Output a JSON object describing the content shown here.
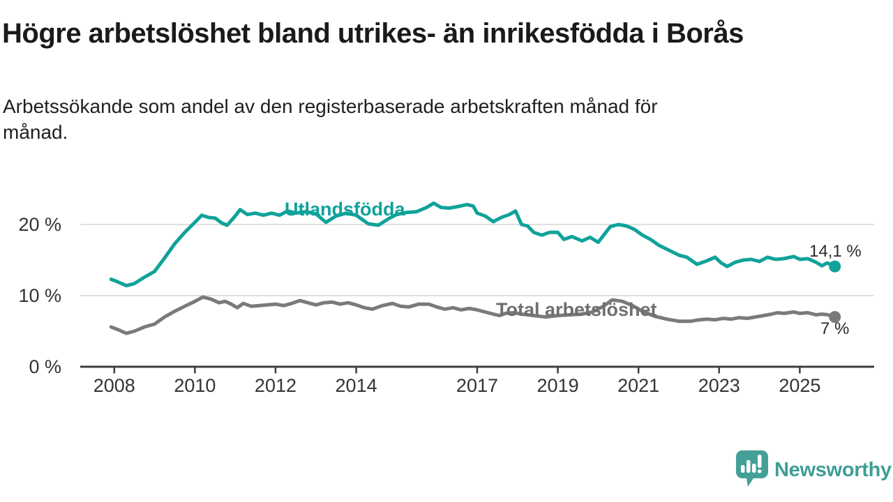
{
  "header": {
    "title": "Högre arbetslöshet bland utrikes- än inrikesfödda i Borås",
    "subtitle_lines": [
      "Arbetssökande som andel av den registerbaserade arbetskraften månad för",
      "månad."
    ]
  },
  "chart_data": {
    "type": "line",
    "title": "Högre arbetslöshet bland utrikes- än inrikesfödda i Borås",
    "subtitle": "Arbetssökande som andel av den registerbaserade arbetskraften månad för månad.",
    "xlabel": "",
    "ylabel": "",
    "ylim": [
      0,
      26
    ],
    "xlim": [
      2007.15,
      2026.85
    ],
    "grid": "horizontal",
    "legend_position": "inline-labels",
    "x_tick_labels": [
      "2008",
      "2010",
      "2012",
      "2014",
      "2017",
      "2019",
      "2021",
      "2023",
      "2025"
    ],
    "y_ticks": [
      {
        "value": 0,
        "label": "0 %"
      },
      {
        "value": 10,
        "label": "10 %"
      },
      {
        "value": 20,
        "label": "20 %"
      }
    ],
    "series": [
      {
        "name": "Utlandsfödda",
        "color": "#0fa29a",
        "end_label": "14,1 %",
        "end_value": 14.1,
        "points": [
          [
            2007.92,
            12.3
          ],
          [
            2008.1,
            11.9
          ],
          [
            2008.3,
            11.4
          ],
          [
            2008.5,
            11.7
          ],
          [
            2008.75,
            12.6
          ],
          [
            2009.0,
            13.4
          ],
          [
            2009.25,
            15.3
          ],
          [
            2009.5,
            17.3
          ],
          [
            2009.75,
            18.9
          ],
          [
            2010.0,
            20.3
          ],
          [
            2010.17,
            21.3
          ],
          [
            2010.33,
            21.0
          ],
          [
            2010.5,
            20.9
          ],
          [
            2010.67,
            20.2
          ],
          [
            2010.8,
            19.9
          ],
          [
            2011.0,
            21.2
          ],
          [
            2011.12,
            22.1
          ],
          [
            2011.3,
            21.4
          ],
          [
            2011.5,
            21.6
          ],
          [
            2011.7,
            21.3
          ],
          [
            2011.9,
            21.6
          ],
          [
            2012.1,
            21.3
          ],
          [
            2012.3,
            21.9
          ],
          [
            2012.5,
            21.6
          ],
          [
            2012.75,
            21.8
          ],
          [
            2013.0,
            21.5
          ],
          [
            2013.25,
            20.3
          ],
          [
            2013.5,
            21.2
          ],
          [
            2013.75,
            21.6
          ],
          [
            2014.0,
            21.3
          ],
          [
            2014.3,
            20.1
          ],
          [
            2014.55,
            19.9
          ],
          [
            2014.8,
            20.8
          ],
          [
            2015.0,
            21.4
          ],
          [
            2015.25,
            21.7
          ],
          [
            2015.5,
            21.8
          ],
          [
            2015.75,
            22.4
          ],
          [
            2015.92,
            23.0
          ],
          [
            2016.1,
            22.4
          ],
          [
            2016.3,
            22.3
          ],
          [
            2016.5,
            22.5
          ],
          [
            2016.75,
            22.8
          ],
          [
            2016.9,
            22.6
          ],
          [
            2017.0,
            21.6
          ],
          [
            2017.2,
            21.2
          ],
          [
            2017.4,
            20.4
          ],
          [
            2017.6,
            21.0
          ],
          [
            2017.8,
            21.4
          ],
          [
            2017.95,
            21.9
          ],
          [
            2018.1,
            20.0
          ],
          [
            2018.25,
            19.8
          ],
          [
            2018.4,
            18.9
          ],
          [
            2018.6,
            18.5
          ],
          [
            2018.8,
            18.9
          ],
          [
            2019.0,
            18.9
          ],
          [
            2019.15,
            17.9
          ],
          [
            2019.35,
            18.3
          ],
          [
            2019.6,
            17.7
          ],
          [
            2019.8,
            18.2
          ],
          [
            2020.0,
            17.5
          ],
          [
            2020.15,
            18.6
          ],
          [
            2020.3,
            19.7
          ],
          [
            2020.5,
            20.0
          ],
          [
            2020.7,
            19.8
          ],
          [
            2020.9,
            19.3
          ],
          [
            2021.1,
            18.5
          ],
          [
            2021.3,
            17.9
          ],
          [
            2021.5,
            17.1
          ],
          [
            2021.75,
            16.4
          ],
          [
            2022.0,
            15.7
          ],
          [
            2022.2,
            15.4
          ],
          [
            2022.45,
            14.4
          ],
          [
            2022.7,
            14.9
          ],
          [
            2022.9,
            15.4
          ],
          [
            2023.05,
            14.6
          ],
          [
            2023.2,
            14.1
          ],
          [
            2023.4,
            14.7
          ],
          [
            2023.6,
            15.0
          ],
          [
            2023.8,
            15.1
          ],
          [
            2024.0,
            14.8
          ],
          [
            2024.2,
            15.4
          ],
          [
            2024.4,
            15.1
          ],
          [
            2024.6,
            15.2
          ],
          [
            2024.85,
            15.5
          ],
          [
            2025.0,
            15.1
          ],
          [
            2025.2,
            15.2
          ],
          [
            2025.4,
            14.7
          ],
          [
            2025.55,
            14.2
          ],
          [
            2025.68,
            14.6
          ],
          [
            2025.87,
            14.1
          ]
        ]
      },
      {
        "name": "Total arbetslöshet",
        "color": "#7a7a7a",
        "end_label": "7 %",
        "end_value": 7.0,
        "points": [
          [
            2007.92,
            5.6
          ],
          [
            2008.1,
            5.2
          ],
          [
            2008.3,
            4.7
          ],
          [
            2008.5,
            5.0
          ],
          [
            2008.75,
            5.6
          ],
          [
            2009.0,
            6.0
          ],
          [
            2009.25,
            7.0
          ],
          [
            2009.5,
            7.8
          ],
          [
            2009.75,
            8.5
          ],
          [
            2010.0,
            9.2
          ],
          [
            2010.2,
            9.8
          ],
          [
            2010.4,
            9.5
          ],
          [
            2010.6,
            9.0
          ],
          [
            2010.75,
            9.2
          ],
          [
            2010.9,
            8.8
          ],
          [
            2011.05,
            8.3
          ],
          [
            2011.2,
            8.9
          ],
          [
            2011.4,
            8.5
          ],
          [
            2011.6,
            8.6
          ],
          [
            2011.8,
            8.7
          ],
          [
            2012.0,
            8.8
          ],
          [
            2012.2,
            8.6
          ],
          [
            2012.4,
            8.9
          ],
          [
            2012.6,
            9.3
          ],
          [
            2012.8,
            9.0
          ],
          [
            2013.0,
            8.7
          ],
          [
            2013.2,
            9.0
          ],
          [
            2013.4,
            9.1
          ],
          [
            2013.6,
            8.8
          ],
          [
            2013.8,
            9.0
          ],
          [
            2014.0,
            8.7
          ],
          [
            2014.2,
            8.3
          ],
          [
            2014.4,
            8.1
          ],
          [
            2014.65,
            8.6
          ],
          [
            2014.9,
            8.9
          ],
          [
            2015.1,
            8.5
          ],
          [
            2015.3,
            8.4
          ],
          [
            2015.55,
            8.8
          ],
          [
            2015.8,
            8.8
          ],
          [
            2016.0,
            8.4
          ],
          [
            2016.2,
            8.1
          ],
          [
            2016.4,
            8.3
          ],
          [
            2016.6,
            8.0
          ],
          [
            2016.8,
            8.2
          ],
          [
            2017.0,
            8.0
          ],
          [
            2017.2,
            7.7
          ],
          [
            2017.4,
            7.4
          ],
          [
            2017.55,
            7.2
          ],
          [
            2017.7,
            7.5
          ],
          [
            2017.9,
            7.6
          ],
          [
            2018.1,
            7.4
          ],
          [
            2018.4,
            7.2
          ],
          [
            2018.7,
            7.0
          ],
          [
            2019.0,
            7.2
          ],
          [
            2019.3,
            7.3
          ],
          [
            2019.6,
            7.4
          ],
          [
            2019.85,
            7.7
          ],
          [
            2020.1,
            8.4
          ],
          [
            2020.35,
            9.4
          ],
          [
            2020.6,
            9.2
          ],
          [
            2020.85,
            8.6
          ],
          [
            2021.1,
            7.8
          ],
          [
            2021.4,
            7.1
          ],
          [
            2021.7,
            6.7
          ],
          [
            2022.0,
            6.4
          ],
          [
            2022.3,
            6.4
          ],
          [
            2022.5,
            6.6
          ],
          [
            2022.7,
            6.7
          ],
          [
            2022.9,
            6.6
          ],
          [
            2023.1,
            6.8
          ],
          [
            2023.3,
            6.7
          ],
          [
            2023.5,
            6.9
          ],
          [
            2023.7,
            6.8
          ],
          [
            2023.9,
            7.0
          ],
          [
            2024.1,
            7.2
          ],
          [
            2024.3,
            7.4
          ],
          [
            2024.45,
            7.6
          ],
          [
            2024.6,
            7.5
          ],
          [
            2024.85,
            7.7
          ],
          [
            2025.0,
            7.5
          ],
          [
            2025.2,
            7.6
          ],
          [
            2025.4,
            7.3
          ],
          [
            2025.55,
            7.4
          ],
          [
            2025.7,
            7.3
          ],
          [
            2025.87,
            7.0
          ]
        ]
      }
    ],
    "colors": {
      "grid": "#d6d6d6",
      "axis": "#3d3d3d",
      "tick_text": "#333333",
      "value_text": "#2b2b2b"
    }
  },
  "footer": {
    "brand": "Newsworthy",
    "brand_color": "#3f9e96"
  }
}
